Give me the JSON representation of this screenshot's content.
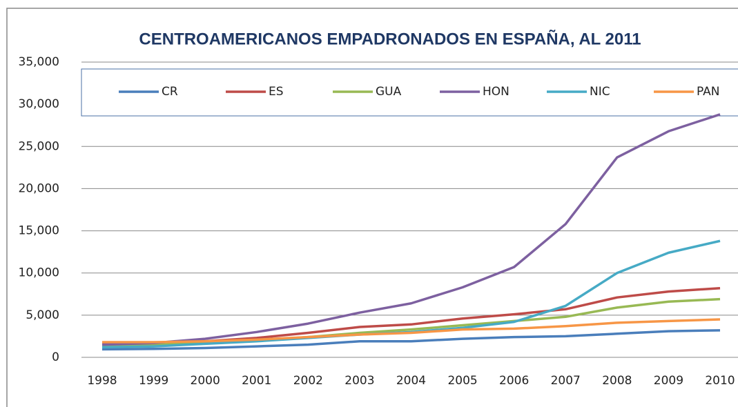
{
  "chart_data": {
    "type": "line",
    "title": "CENTROAMERICANOS EMPADRONADOS EN ESPAÑA, AL 2011",
    "categories": [
      "1998",
      "1999",
      "2000",
      "2001",
      "2002",
      "2003",
      "2004",
      "2005",
      "2006",
      "2007",
      "2008",
      "2009",
      "2010"
    ],
    "series": [
      {
        "name": "CR",
        "color": "#4a7ebb",
        "values": [
          950,
          1000,
          1100,
          1300,
          1500,
          1900,
          1900,
          2200,
          2400,
          2500,
          2800,
          3100,
          3200
        ]
      },
      {
        "name": "ES",
        "color": "#be4b48",
        "values": [
          1600,
          1700,
          1900,
          2300,
          2900,
          3600,
          3900,
          4600,
          5100,
          5700,
          7100,
          7800,
          8200
        ]
      },
      {
        "name": "GUA",
        "color": "#98b954",
        "values": [
          1400,
          1500,
          1700,
          2000,
          2400,
          2900,
          3300,
          3800,
          4300,
          4800,
          5900,
          6600,
          6900
        ]
      },
      {
        "name": "HON",
        "color": "#7d60a0",
        "values": [
          1500,
          1700,
          2200,
          3000,
          4000,
          5300,
          6400,
          8300,
          10700,
          15800,
          23700,
          26800,
          28800
        ]
      },
      {
        "name": "NIC",
        "color": "#46aac5",
        "values": [
          1200,
          1300,
          1600,
          1900,
          2300,
          2700,
          3000,
          3500,
          4200,
          6100,
          10000,
          12400,
          13800
        ]
      },
      {
        "name": "PAN",
        "color": "#f79646",
        "values": [
          1800,
          1800,
          1900,
          2100,
          2400,
          2700,
          2900,
          3300,
          3400,
          3700,
          4100,
          4300,
          4500
        ]
      }
    ],
    "ylim": [
      0,
      35000
    ],
    "yticks": [
      0,
      {
        "value": 5000,
        "label": "5,000"
      },
      {
        "value": 10000,
        "label": "10,000"
      },
      {
        "value": 15000,
        "label": "15,000"
      },
      {
        "value": 20000,
        "label": "20,000"
      },
      {
        "value": 25000,
        "label": "25,000"
      },
      {
        "value": 30000,
        "label": "30,000"
      },
      {
        "value": 35000,
        "label": "35,000"
      }
    ],
    "grid": true,
    "legend": "top"
  }
}
